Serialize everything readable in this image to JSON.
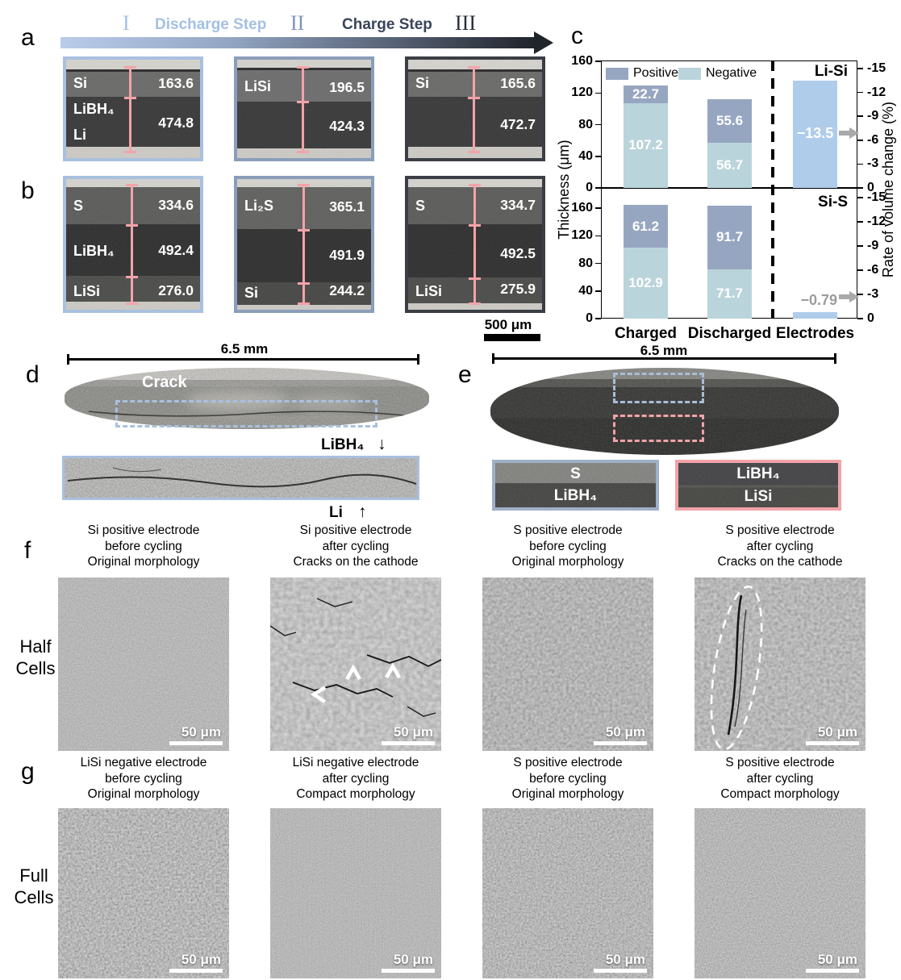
{
  "figure": {
    "panels": {
      "a": "a",
      "b": "b",
      "c": "c",
      "d": "d",
      "e": "e",
      "f": "f",
      "g": "g"
    }
  },
  "timeline": {
    "numeral_1": "I",
    "discharge_label": "Discharge Step",
    "numeral_2": "II",
    "charge_label": "Charge Step",
    "numeral_3": "III"
  },
  "panel_a": {
    "images": [
      {
        "l1": "Si",
        "l2": "LiBH₄",
        "l3": "Li",
        "v_top": "163.6",
        "v_bot": "474.8"
      },
      {
        "l1": "LiSi",
        "v_top": "196.5",
        "v_bot": "424.3"
      },
      {
        "l1": "Si",
        "v_top": "165.6",
        "v_bot": "472.7"
      }
    ]
  },
  "panel_b": {
    "scale_bar": "500 μm",
    "images": [
      {
        "l1": "S",
        "v1": "334.6",
        "l2": "LiBH₄",
        "v2": "492.4",
        "l3": "LiSi",
        "v3": "276.0"
      },
      {
        "l1": "Li₂S",
        "v1": "365.1",
        "v2": "491.9",
        "l3": "Si",
        "v3": "244.2"
      },
      {
        "l1": "S",
        "v1": "334.7",
        "v2": "492.5",
        "l3": "LiSi",
        "v3": "275.9"
      }
    ]
  },
  "chart_data": {
    "type": "bar",
    "stacked": true,
    "legend": [
      "Positive",
      "Negative"
    ],
    "categories": [
      "Charged",
      "Discharged",
      "Electrodes"
    ],
    "ylabel": "Thickness (μm)",
    "y2label": "Rate of volume change (%)",
    "ylim": [
      0,
      160
    ],
    "y2lim": [
      0,
      -15
    ],
    "yticks": [
      160,
      120,
      80,
      40,
      0
    ],
    "y2ticks": [
      -15,
      -12,
      -9,
      -6,
      -3,
      0
    ],
    "subplots": [
      {
        "name": "Li-Si",
        "bars": [
          {
            "category": "Charged",
            "negative": 107.2,
            "positive": 22.7
          },
          {
            "category": "Discharged",
            "negative": 56.7,
            "positive": 55.6
          }
        ],
        "rate_bar": {
          "value": -13.5,
          "label": "−13.5"
        }
      },
      {
        "name": "Si-S",
        "bars": [
          {
            "category": "Charged",
            "negative": 102.9,
            "positive": 61.2
          },
          {
            "category": "Discharged",
            "negative": 71.7,
            "positive": 91.7
          }
        ],
        "rate_bar": {
          "value": -0.79,
          "label": "−0.79"
        }
      }
    ],
    "colors": {
      "positive": "#97a6c0",
      "negative": "#bad4db",
      "rate_bar": "#afccea",
      "arrow": "#a9a9a9",
      "rate_label_outside": "#9c9c9c"
    }
  },
  "panel_d": {
    "scale_text": "6.5 mm",
    "crack_label": "Crack",
    "top_annotation": "LiBH₄",
    "down_arrow": "↓",
    "bottom_annotation": "Li",
    "up_arrow": "↑"
  },
  "panel_e": {
    "scale_text": "6.5 mm",
    "inset1_top": "S",
    "inset1_bottom": "LiBH₄",
    "inset2_top": "LiBH₄",
    "inset2_bottom": "LiSi"
  },
  "panel_f": {
    "row_label_1": "Half",
    "row_label_2": "Cells",
    "scale_label": "50 μm",
    "items": [
      {
        "line1": "Si positive electrode",
        "line2": "before cycling",
        "line3": "Original morphology"
      },
      {
        "line1": "Si positive electrode",
        "line2": "after cycling",
        "line3": "Cracks on the cathode"
      },
      {
        "line1": "S positive electrode",
        "line2": "before cycling",
        "line3": "Original morphology"
      },
      {
        "line1": "S positive electrode",
        "line2": "after cycling",
        "line3": "Cracks on the cathode"
      }
    ]
  },
  "panel_g": {
    "row_label_1": "Full",
    "row_label_2": "Cells",
    "scale_label": "50 μm",
    "items": [
      {
        "line1": "LiSi negative electrode",
        "line2": "before cycling",
        "line3": "Original morphology"
      },
      {
        "line1": "LiSi negative electrode",
        "line2": "after cycling",
        "line3": "Compact morphology"
      },
      {
        "line1": "S positive electrode",
        "line2": "before cycling",
        "line3": "Original morphology"
      },
      {
        "line1": "S positive electrode",
        "line2": "after cycling",
        "line3": "Compact morphology"
      }
    ]
  }
}
